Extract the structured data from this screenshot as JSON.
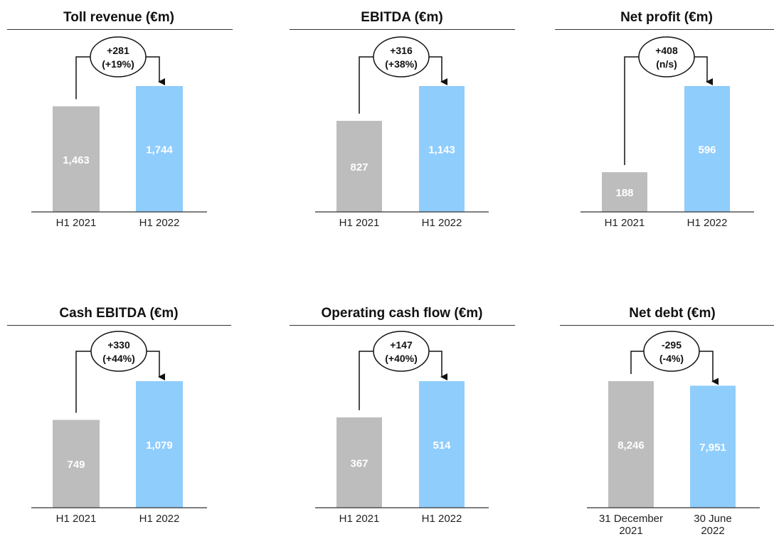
{
  "colors": {
    "bar_prev": "#bdbdbd",
    "bar_curr": "#8fcdfc",
    "bar_label": "#ffffff",
    "axis": "#333333"
  },
  "chart_data": [
    {
      "type": "bar",
      "title": "Toll revenue (€m)",
      "categories": [
        "H1 2021",
        "H1 2022"
      ],
      "values": [
        1463,
        1744
      ],
      "value_labels": [
        "1,463",
        "1,744"
      ],
      "change": {
        "abs": "+281",
        "pct": "(+19%)"
      }
    },
    {
      "type": "bar",
      "title": "EBITDA (€m)",
      "categories": [
        "H1 2021",
        "H1 2022"
      ],
      "values": [
        827,
        1143
      ],
      "value_labels": [
        "827",
        "1,143"
      ],
      "change": {
        "abs": "+316",
        "pct": "(+38%)"
      }
    },
    {
      "type": "bar",
      "title": "Net profit (€m)",
      "categories": [
        "H1 2021",
        "H1 2022"
      ],
      "values": [
        188,
        596
      ],
      "value_labels": [
        "188",
        "596"
      ],
      "change": {
        "abs": "+408",
        "pct": "(n/s)"
      }
    },
    {
      "type": "bar",
      "title": "Cash EBITDA (€m)",
      "categories": [
        "H1 2021",
        "H1 2022"
      ],
      "values": [
        749,
        1079
      ],
      "value_labels": [
        "749",
        "1,079"
      ],
      "change": {
        "abs": "+330",
        "pct": "(+44%)"
      }
    },
    {
      "type": "bar",
      "title": "Operating cash flow (€m)",
      "categories": [
        "H1 2021",
        "H1 2022"
      ],
      "values": [
        367,
        514
      ],
      "value_labels": [
        "367",
        "514"
      ],
      "change": {
        "abs": "+147",
        "pct": "(+40%)"
      }
    },
    {
      "type": "bar",
      "title": "Net debt (€m)",
      "categories": [
        "31 December 2021",
        "30 June 2022"
      ],
      "values": [
        8246,
        7951
      ],
      "value_labels": [
        "8,246",
        "7,951"
      ],
      "change": {
        "abs": "-295",
        "pct": "(-4%)"
      }
    }
  ]
}
